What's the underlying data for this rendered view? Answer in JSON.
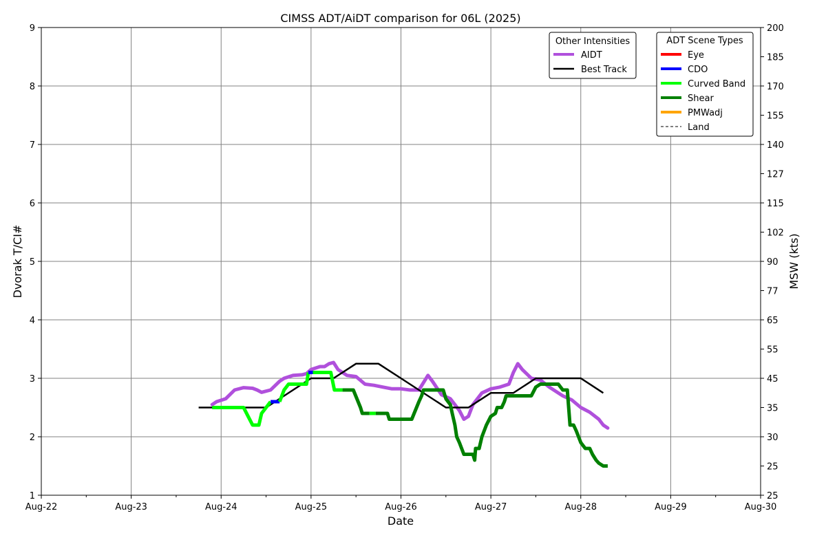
{
  "chart_data": {
    "type": "line",
    "title": "CIMSS ADT/AiDT comparison for 06L (2025)",
    "xlabel": "Date",
    "ylabel": "Dvorak T/CI#",
    "y2label": "MSW (kts)",
    "x_ticks": [
      "Aug-22",
      "Aug-23",
      "Aug-24",
      "Aug-25",
      "Aug-26",
      "Aug-27",
      "Aug-28",
      "Aug-29",
      "Aug-30"
    ],
    "xlim": [
      0,
      8
    ],
    "ylim": [
      1,
      9
    ],
    "y_ticks": [
      1,
      2,
      3,
      4,
      5,
      6,
      7,
      8,
      9
    ],
    "y2_ticks": [
      {
        "t": 1.0,
        "label": "25"
      },
      {
        "t": 1.5,
        "label": "25"
      },
      {
        "t": 2.0,
        "label": "30"
      },
      {
        "t": 2.5,
        "label": "35"
      },
      {
        "t": 3.0,
        "label": "45"
      },
      {
        "t": 3.5,
        "label": "55"
      },
      {
        "t": 4.0,
        "label": "65"
      },
      {
        "t": 4.5,
        "label": "77"
      },
      {
        "t": 5.0,
        "label": "90"
      },
      {
        "t": 5.5,
        "label": "102"
      },
      {
        "t": 6.0,
        "label": "115"
      },
      {
        "t": 6.5,
        "label": "127"
      },
      {
        "t": 7.0,
        "label": "140"
      },
      {
        "t": 7.5,
        "label": "155"
      },
      {
        "t": 8.0,
        "label": "170"
      },
      {
        "t": 8.5,
        "label": "185"
      },
      {
        "t": 9.0,
        "label": "200"
      }
    ],
    "grid": true,
    "legend_other": {
      "title": "Other Intensities",
      "placement": "top-right",
      "items": [
        {
          "label": "AIDT",
          "color": "#b050dc"
        },
        {
          "label": "Best Track",
          "color": "#000000"
        }
      ]
    },
    "legend_adt": {
      "title": "ADT Scene Types",
      "placement": "top-right",
      "items": [
        {
          "label": "Eye",
          "color": "#ff0000",
          "style": "solid"
        },
        {
          "label": "CDO",
          "color": "#0000ff",
          "style": "solid"
        },
        {
          "label": "Curved Band",
          "color": "#00ff00",
          "style": "solid"
        },
        {
          "label": "Shear",
          "color": "#008000",
          "style": "solid"
        },
        {
          "label": "PMWadj",
          "color": "#ffa500",
          "style": "solid"
        },
        {
          "label": "Land",
          "color": "#000000",
          "style": "dashed"
        }
      ]
    },
    "series": [
      {
        "name": "Best Track",
        "color": "#000000",
        "points": [
          [
            1.75,
            2.5
          ],
          [
            2.5,
            2.5
          ],
          [
            3.0,
            3.0
          ],
          [
            3.25,
            3.0
          ],
          [
            3.5,
            3.25
          ],
          [
            3.75,
            3.25
          ],
          [
            4.0,
            3.0
          ],
          [
            4.5,
            2.5
          ],
          [
            4.75,
            2.5
          ],
          [
            5.0,
            2.75
          ],
          [
            5.25,
            2.75
          ],
          [
            5.5,
            3.0
          ],
          [
            6.0,
            3.0
          ],
          [
            6.25,
            2.75
          ]
        ]
      },
      {
        "name": "AIDT",
        "color": "#b050dc",
        "points": [
          [
            1.9,
            2.55
          ],
          [
            1.95,
            2.6
          ],
          [
            2.05,
            2.65
          ],
          [
            2.15,
            2.8
          ],
          [
            2.25,
            2.84
          ],
          [
            2.35,
            2.83
          ],
          [
            2.4,
            2.8
          ],
          [
            2.45,
            2.76
          ],
          [
            2.55,
            2.8
          ],
          [
            2.65,
            2.95
          ],
          [
            2.7,
            3.0
          ],
          [
            2.8,
            3.05
          ],
          [
            2.9,
            3.06
          ],
          [
            2.95,
            3.08
          ],
          [
            3.0,
            3.15
          ],
          [
            3.1,
            3.2
          ],
          [
            3.15,
            3.2
          ],
          [
            3.2,
            3.25
          ],
          [
            3.25,
            3.27
          ],
          [
            3.3,
            3.15
          ],
          [
            3.4,
            3.05
          ],
          [
            3.5,
            3.03
          ],
          [
            3.6,
            2.9
          ],
          [
            3.7,
            2.88
          ],
          [
            3.8,
            2.85
          ],
          [
            3.9,
            2.82
          ],
          [
            4.0,
            2.82
          ],
          [
            4.1,
            2.8
          ],
          [
            4.2,
            2.8
          ],
          [
            4.3,
            3.05
          ],
          [
            4.35,
            2.95
          ],
          [
            4.45,
            2.72
          ],
          [
            4.55,
            2.65
          ],
          [
            4.65,
            2.45
          ],
          [
            4.7,
            2.3
          ],
          [
            4.75,
            2.35
          ],
          [
            4.8,
            2.55
          ],
          [
            4.9,
            2.75
          ],
          [
            5.0,
            2.82
          ],
          [
            5.1,
            2.85
          ],
          [
            5.2,
            2.9
          ],
          [
            5.25,
            3.1
          ],
          [
            5.3,
            3.25
          ],
          [
            5.35,
            3.15
          ],
          [
            5.45,
            3.0
          ],
          [
            5.55,
            2.97
          ],
          [
            5.65,
            2.85
          ],
          [
            5.75,
            2.75
          ],
          [
            5.8,
            2.7
          ],
          [
            5.9,
            2.63
          ],
          [
            6.0,
            2.5
          ],
          [
            6.1,
            2.42
          ],
          [
            6.2,
            2.3
          ],
          [
            6.25,
            2.2
          ],
          [
            6.3,
            2.15
          ]
        ]
      },
      {
        "name": "ADT",
        "segments": [
          {
            "scene": "Curved Band",
            "color": "#00ff00",
            "points": [
              [
                1.9,
                2.5
              ],
              [
                2.25,
                2.5
              ],
              [
                2.3,
                2.35
              ],
              [
                2.35,
                2.2
              ],
              [
                2.42,
                2.2
              ],
              [
                2.45,
                2.4
              ],
              [
                2.5,
                2.5
              ],
              [
                2.55,
                2.6
              ]
            ]
          },
          {
            "scene": "CDO",
            "color": "#0000ff",
            "points": [
              [
                2.55,
                2.6
              ],
              [
                2.65,
                2.6
              ]
            ]
          },
          {
            "scene": "Curved Band",
            "color": "#00ff00",
            "points": [
              [
                2.65,
                2.6
              ],
              [
                2.7,
                2.8
              ],
              [
                2.75,
                2.9
              ],
              [
                2.95,
                2.9
              ],
              [
                2.97,
                3.1
              ]
            ]
          },
          {
            "scene": "CDO",
            "color": "#0000ff",
            "points": [
              [
                2.97,
                3.1
              ],
              [
                3.02,
                3.1
              ]
            ]
          },
          {
            "scene": "Curved Band",
            "color": "#00ff00",
            "points": [
              [
                3.02,
                3.1
              ],
              [
                3.22,
                3.1
              ],
              [
                3.26,
                2.8
              ],
              [
                3.35,
                2.8
              ]
            ]
          },
          {
            "scene": "Shear",
            "color": "#008000",
            "points": [
              [
                3.35,
                2.8
              ],
              [
                3.47,
                2.8
              ],
              [
                3.55,
                2.5
              ],
              [
                3.57,
                2.4
              ],
              [
                3.65,
                2.4
              ]
            ]
          },
          {
            "scene": "Curved Band",
            "color": "#00ff00",
            "points": [
              [
                3.65,
                2.4
              ],
              [
                3.72,
                2.4
              ]
            ]
          },
          {
            "scene": "Shear",
            "color": "#008000",
            "points": [
              [
                3.72,
                2.4
              ],
              [
                3.85,
                2.4
              ],
              [
                3.87,
                2.3
              ],
              [
                4.12,
                2.3
              ],
              [
                4.2,
                2.6
              ],
              [
                4.23,
                2.7
              ],
              [
                4.25,
                2.8
              ],
              [
                4.47,
                2.8
              ],
              [
                4.5,
                2.65
              ],
              [
                4.55,
                2.55
              ],
              [
                4.57,
                2.4
              ],
              [
                4.6,
                2.2
              ],
              [
                4.62,
                2.0
              ],
              [
                4.65,
                1.9
              ],
              [
                4.7,
                1.7
              ],
              [
                4.8,
                1.7
              ],
              [
                4.82,
                1.6
              ],
              [
                4.83,
                1.8
              ],
              [
                4.87,
                1.8
              ],
              [
                4.9,
                2.0
              ],
              [
                4.95,
                2.2
              ],
              [
                5.0,
                2.35
              ],
              [
                5.05,
                2.4
              ],
              [
                5.07,
                2.5
              ],
              [
                5.12,
                2.5
              ],
              [
                5.15,
                2.6
              ],
              [
                5.17,
                2.7
              ],
              [
                5.45,
                2.7
              ],
              [
                5.5,
                2.85
              ],
              [
                5.55,
                2.9
              ],
              [
                5.75,
                2.9
              ],
              [
                5.8,
                2.8
              ],
              [
                5.85,
                2.8
              ],
              [
                5.88,
                2.2
              ],
              [
                5.92,
                2.2
              ],
              [
                5.95,
                2.1
              ],
              [
                6.0,
                1.9
              ],
              [
                6.05,
                1.8
              ],
              [
                6.1,
                1.8
              ],
              [
                6.13,
                1.7
              ],
              [
                6.17,
                1.6
              ],
              [
                6.2,
                1.55
              ],
              [
                6.25,
                1.5
              ],
              [
                6.3,
                1.5
              ]
            ]
          }
        ]
      }
    ]
  }
}
